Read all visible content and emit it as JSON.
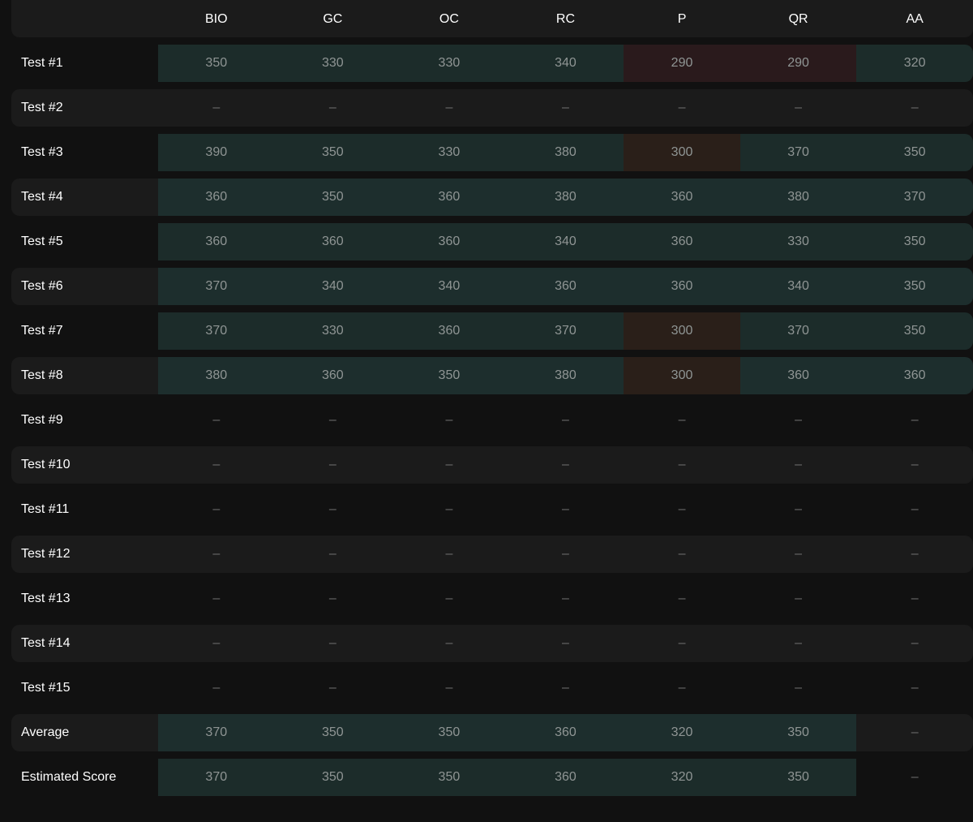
{
  "columns": [
    "BIO",
    "GC",
    "OC",
    "RC",
    "P",
    "QR",
    "AA"
  ],
  "colors": {
    "good": "#1c2c2a",
    "good_alt": "#1d2e2d",
    "bad": "#2a1a1c",
    "warn": "#2a1f19",
    "neutral": "transparent"
  },
  "rows": [
    {
      "label": "Test #1",
      "cells": [
        {
          "v": "350",
          "s": "good"
        },
        {
          "v": "330",
          "s": "good"
        },
        {
          "v": "330",
          "s": "good"
        },
        {
          "v": "340",
          "s": "good"
        },
        {
          "v": "290",
          "s": "bad"
        },
        {
          "v": "290",
          "s": "bad"
        },
        {
          "v": "320",
          "s": "good"
        }
      ]
    },
    {
      "label": "Test #2",
      "cells": [
        {
          "v": "–",
          "s": "neutral"
        },
        {
          "v": "–",
          "s": "neutral"
        },
        {
          "v": "–",
          "s": "neutral"
        },
        {
          "v": "–",
          "s": "neutral"
        },
        {
          "v": "–",
          "s": "neutral"
        },
        {
          "v": "–",
          "s": "neutral"
        },
        {
          "v": "–",
          "s": "neutral"
        }
      ]
    },
    {
      "label": "Test #3",
      "cells": [
        {
          "v": "390",
          "s": "good"
        },
        {
          "v": "350",
          "s": "good"
        },
        {
          "v": "330",
          "s": "good"
        },
        {
          "v": "380",
          "s": "good"
        },
        {
          "v": "300",
          "s": "warn"
        },
        {
          "v": "370",
          "s": "good"
        },
        {
          "v": "350",
          "s": "good"
        }
      ]
    },
    {
      "label": "Test #4",
      "cells": [
        {
          "v": "360",
          "s": "good_alt"
        },
        {
          "v": "350",
          "s": "good_alt"
        },
        {
          "v": "360",
          "s": "good_alt"
        },
        {
          "v": "380",
          "s": "good_alt"
        },
        {
          "v": "360",
          "s": "good_alt"
        },
        {
          "v": "380",
          "s": "good_alt"
        },
        {
          "v": "370",
          "s": "good_alt"
        }
      ]
    },
    {
      "label": "Test #5",
      "cells": [
        {
          "v": "360",
          "s": "good"
        },
        {
          "v": "360",
          "s": "good"
        },
        {
          "v": "360",
          "s": "good"
        },
        {
          "v": "340",
          "s": "good"
        },
        {
          "v": "360",
          "s": "good"
        },
        {
          "v": "330",
          "s": "good"
        },
        {
          "v": "350",
          "s": "good"
        }
      ]
    },
    {
      "label": "Test #6",
      "cells": [
        {
          "v": "370",
          "s": "good_alt"
        },
        {
          "v": "340",
          "s": "good_alt"
        },
        {
          "v": "340",
          "s": "good_alt"
        },
        {
          "v": "360",
          "s": "good_alt"
        },
        {
          "v": "360",
          "s": "good_alt"
        },
        {
          "v": "340",
          "s": "good_alt"
        },
        {
          "v": "350",
          "s": "good_alt"
        }
      ]
    },
    {
      "label": "Test #7",
      "cells": [
        {
          "v": "370",
          "s": "good"
        },
        {
          "v": "330",
          "s": "good"
        },
        {
          "v": "360",
          "s": "good"
        },
        {
          "v": "370",
          "s": "good"
        },
        {
          "v": "300",
          "s": "warn"
        },
        {
          "v": "370",
          "s": "good"
        },
        {
          "v": "350",
          "s": "good"
        }
      ]
    },
    {
      "label": "Test #8",
      "cells": [
        {
          "v": "380",
          "s": "good_alt"
        },
        {
          "v": "360",
          "s": "good_alt"
        },
        {
          "v": "350",
          "s": "good_alt"
        },
        {
          "v": "380",
          "s": "good_alt"
        },
        {
          "v": "300",
          "s": "warn"
        },
        {
          "v": "360",
          "s": "good_alt"
        },
        {
          "v": "360",
          "s": "good_alt"
        }
      ]
    },
    {
      "label": "Test #9",
      "cells": [
        {
          "v": "–",
          "s": "neutral"
        },
        {
          "v": "–",
          "s": "neutral"
        },
        {
          "v": "–",
          "s": "neutral"
        },
        {
          "v": "–",
          "s": "neutral"
        },
        {
          "v": "–",
          "s": "neutral"
        },
        {
          "v": "–",
          "s": "neutral"
        },
        {
          "v": "–",
          "s": "neutral"
        }
      ]
    },
    {
      "label": "Test #10",
      "cells": [
        {
          "v": "–",
          "s": "neutral"
        },
        {
          "v": "–",
          "s": "neutral"
        },
        {
          "v": "–",
          "s": "neutral"
        },
        {
          "v": "–",
          "s": "neutral"
        },
        {
          "v": "–",
          "s": "neutral"
        },
        {
          "v": "–",
          "s": "neutral"
        },
        {
          "v": "–",
          "s": "neutral"
        }
      ]
    },
    {
      "label": "Test #11",
      "cells": [
        {
          "v": "–",
          "s": "neutral"
        },
        {
          "v": "–",
          "s": "neutral"
        },
        {
          "v": "–",
          "s": "neutral"
        },
        {
          "v": "–",
          "s": "neutral"
        },
        {
          "v": "–",
          "s": "neutral"
        },
        {
          "v": "–",
          "s": "neutral"
        },
        {
          "v": "–",
          "s": "neutral"
        }
      ]
    },
    {
      "label": "Test #12",
      "cells": [
        {
          "v": "–",
          "s": "neutral"
        },
        {
          "v": "–",
          "s": "neutral"
        },
        {
          "v": "–",
          "s": "neutral"
        },
        {
          "v": "–",
          "s": "neutral"
        },
        {
          "v": "–",
          "s": "neutral"
        },
        {
          "v": "–",
          "s": "neutral"
        },
        {
          "v": "–",
          "s": "neutral"
        }
      ]
    },
    {
      "label": "Test #13",
      "cells": [
        {
          "v": "–",
          "s": "neutral"
        },
        {
          "v": "–",
          "s": "neutral"
        },
        {
          "v": "–",
          "s": "neutral"
        },
        {
          "v": "–",
          "s": "neutral"
        },
        {
          "v": "–",
          "s": "neutral"
        },
        {
          "v": "–",
          "s": "neutral"
        },
        {
          "v": "–",
          "s": "neutral"
        }
      ]
    },
    {
      "label": "Test #14",
      "cells": [
        {
          "v": "–",
          "s": "neutral"
        },
        {
          "v": "–",
          "s": "neutral"
        },
        {
          "v": "–",
          "s": "neutral"
        },
        {
          "v": "–",
          "s": "neutral"
        },
        {
          "v": "–",
          "s": "neutral"
        },
        {
          "v": "–",
          "s": "neutral"
        },
        {
          "v": "–",
          "s": "neutral"
        }
      ]
    },
    {
      "label": "Test #15",
      "cells": [
        {
          "v": "–",
          "s": "neutral"
        },
        {
          "v": "–",
          "s": "neutral"
        },
        {
          "v": "–",
          "s": "neutral"
        },
        {
          "v": "–",
          "s": "neutral"
        },
        {
          "v": "–",
          "s": "neutral"
        },
        {
          "v": "–",
          "s": "neutral"
        },
        {
          "v": "–",
          "s": "neutral"
        }
      ]
    },
    {
      "label": "Average",
      "cells": [
        {
          "v": "370",
          "s": "good_alt"
        },
        {
          "v": "350",
          "s": "good_alt"
        },
        {
          "v": "350",
          "s": "good_alt"
        },
        {
          "v": "360",
          "s": "good_alt"
        },
        {
          "v": "320",
          "s": "good_alt"
        },
        {
          "v": "350",
          "s": "good_alt"
        },
        {
          "v": "–",
          "s": "neutral"
        }
      ]
    },
    {
      "label": "Estimated Score",
      "cells": [
        {
          "v": "370",
          "s": "good"
        },
        {
          "v": "350",
          "s": "good"
        },
        {
          "v": "350",
          "s": "good"
        },
        {
          "v": "360",
          "s": "good"
        },
        {
          "v": "320",
          "s": "good"
        },
        {
          "v": "350",
          "s": "good"
        },
        {
          "v": "–",
          "s": "neutral"
        }
      ]
    }
  ]
}
